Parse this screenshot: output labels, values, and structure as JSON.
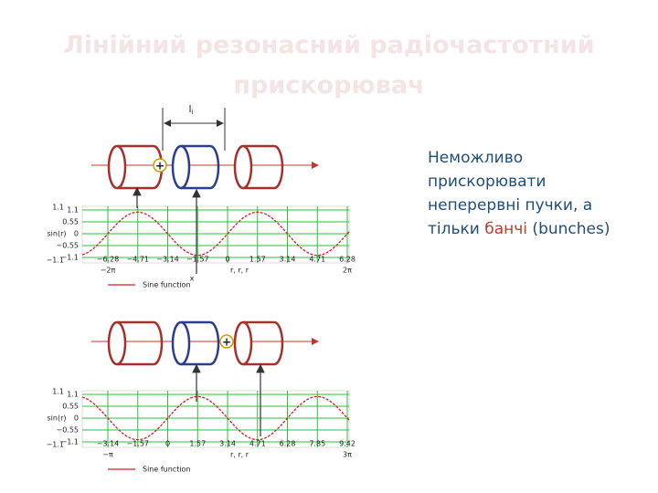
{
  "title": "Лінійний резонасний радіочастотний прискорювач",
  "text": {
    "parts": [
      "Неможливо прискорювати неперервні пучки, а тільки ",
      "банчі",
      " (bunches)"
    ]
  },
  "diagrams": [
    {
      "gap_label": "l",
      "gap_label_sub": "i",
      "charge": "+",
      "y_tick_labels": [
        "1.1",
        "0.55",
        "0",
        "−0.55",
        "−1.1"
      ],
      "y_range_labels": [
        "1.1",
        "−1.1"
      ],
      "y_axis_label": "sin(r)",
      "x_tick_labels": [
        "−6.28",
        "−4.71",
        "−3.14",
        "−1.57",
        "0",
        "1.57",
        "3.14",
        "4.71",
        "6.28"
      ],
      "x_end_labels": [
        "−2π",
        "2π"
      ],
      "x_axis_label": "r, r, r",
      "x_var": "x",
      "legend": "Sine function"
    },
    {
      "charge": "+",
      "y_tick_labels": [
        "1.1",
        "0.55",
        "0",
        "−0.55",
        "−1.1"
      ],
      "y_range_labels": [
        "1.1",
        "−1.1"
      ],
      "y_axis_label": "sin(r)",
      "x_tick_labels": [
        "−3.14",
        "−1.57",
        "0",
        "1.57",
        "3.14",
        "4.71",
        "6.28",
        "7.85",
        "9.42"
      ],
      "x_end_labels": [
        "−π",
        "3π"
      ],
      "x_axis_label": "r, r, r",
      "legend": "Sine function"
    }
  ]
}
